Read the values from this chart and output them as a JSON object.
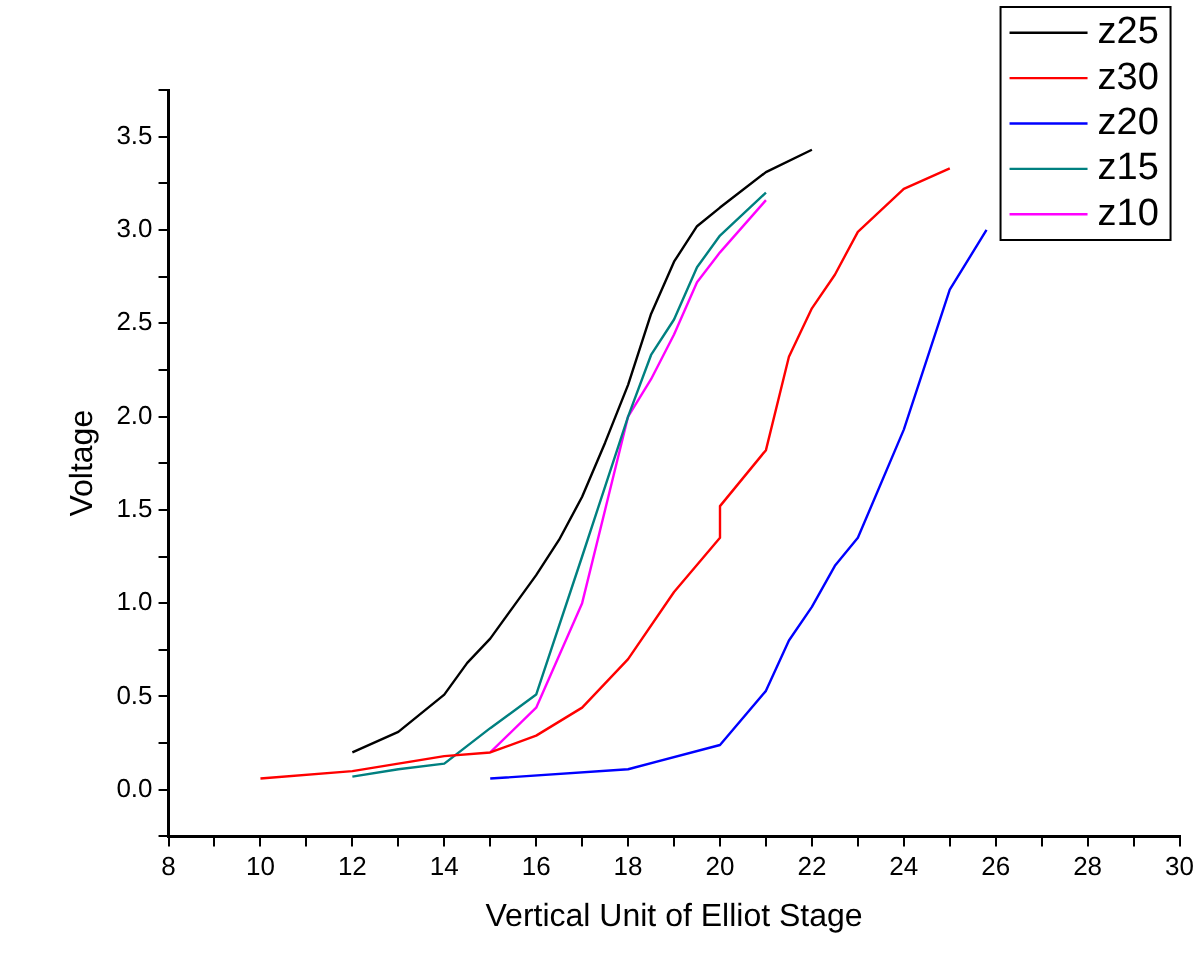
{
  "chart_data": {
    "type": "line",
    "xlabel": "Vertical Unit of Elliot Stage",
    "ylabel": "Voltage",
    "xlim": [
      8,
      30
    ],
    "ylim": [
      -0.25,
      3.75
    ],
    "xticks": [
      8,
      {
        "value": 9,
        "label": null
      },
      10,
      {
        "value": 11,
        "label": null
      },
      12,
      {
        "value": 13,
        "label": null
      },
      14,
      {
        "value": 15,
        "label": null
      },
      16,
      {
        "value": 17,
        "label": null
      },
      18,
      {
        "value": 19,
        "label": null
      },
      20,
      {
        "value": 21,
        "label": null
      },
      22,
      {
        "value": 23,
        "label": null
      },
      24,
      {
        "value": 25,
        "label": null
      },
      26,
      {
        "value": 27,
        "label": null
      },
      28,
      {
        "value": 29,
        "label": null
      },
      30
    ],
    "yticks": [
      {
        "value": -0.25,
        "label": null
      },
      {
        "value": 0,
        "label": "0.0"
      },
      {
        "value": 0.25,
        "label": null
      },
      0.5,
      {
        "value": 0.75,
        "label": null
      },
      {
        "value": 1,
        "label": "1.0"
      },
      {
        "value": 1.25,
        "label": null
      },
      1.5,
      {
        "value": 1.75,
        "label": null
      },
      {
        "value": 2,
        "label": "2.0"
      },
      {
        "value": 2.25,
        "label": null
      },
      2.5,
      {
        "value": 2.75,
        "label": null
      },
      {
        "value": 3,
        "label": "3.0"
      },
      {
        "value": 3.25,
        "label": null
      },
      3.5,
      {
        "value": 3.75,
        "label": null
      }
    ],
    "grid": false,
    "legend": "top right",
    "marker": "none",
    "line_style": "solid",
    "series": [
      {
        "name": "z25",
        "color": "#000000",
        "x": [
          12,
          13,
          14,
          14.5,
          15,
          15.5,
          16,
          16.5,
          17,
          17.5,
          18,
          18.5,
          19,
          19.5,
          20,
          21,
          22
        ],
        "values": [
          0.2,
          0.31,
          0.51,
          0.68,
          0.81,
          0.98,
          1.15,
          1.34,
          1.57,
          1.86,
          2.17,
          2.55,
          2.83,
          3.02,
          3.12,
          3.31,
          3.43
        ]
      },
      {
        "name": "z30",
        "color": "#ff0000",
        "x": [
          10,
          12,
          13,
          14,
          15,
          16,
          17,
          18,
          19,
          20,
          20,
          21,
          21.5,
          22,
          22.5,
          23,
          24,
          25
        ],
        "values": [
          0.06,
          0.1,
          0.14,
          0.18,
          0.2,
          0.29,
          0.44,
          0.7,
          1.06,
          1.35,
          1.52,
          1.82,
          2.32,
          2.58,
          2.76,
          2.99,
          3.22,
          3.33
        ]
      },
      {
        "name": "z20",
        "color": "#0000ff",
        "x": [
          15,
          18,
          20,
          21,
          21.5,
          22,
          22.5,
          23,
          24,
          25,
          25.8
        ],
        "values": [
          0.06,
          0.11,
          0.24,
          0.53,
          0.8,
          0.98,
          1.2,
          1.35,
          1.93,
          2.68,
          3.0
        ]
      },
      {
        "name": "z15",
        "color": "#008080",
        "x": [
          12,
          13,
          14,
          15,
          16,
          17,
          18,
          18.5,
          19,
          19.5,
          20,
          21
        ],
        "values": [
          0.07,
          0.11,
          0.14,
          0.33,
          0.51,
          1.25,
          2.0,
          2.33,
          2.52,
          2.8,
          2.97,
          3.2
        ]
      },
      {
        "name": "z10",
        "color": "#ff00ff",
        "x": [
          15,
          16,
          17,
          18,
          18.5,
          19,
          19.5,
          20,
          21
        ],
        "values": [
          0.2,
          0.44,
          1.0,
          2.0,
          2.2,
          2.44,
          2.72,
          2.88,
          3.16
        ]
      }
    ]
  }
}
